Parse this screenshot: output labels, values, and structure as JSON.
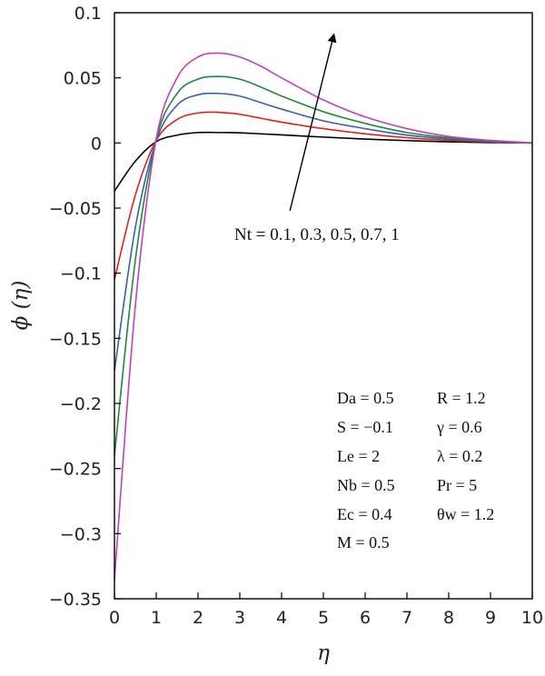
{
  "chart_data": {
    "type": "line",
    "title": "",
    "xlabel": "η",
    "ylabel": "ϕ (η)",
    "xlim": [
      0,
      10
    ],
    "ylim": [
      -0.35,
      0.1
    ],
    "x_ticks": [
      "0",
      "1",
      "2",
      "3",
      "4",
      "5",
      "6",
      "7",
      "8",
      "9",
      "10"
    ],
    "y_ticks": [
      "0.1",
      "0.05",
      "0",
      "−0.05",
      "−0.1",
      "−0.15",
      "−0.2",
      "−0.25",
      "−0.3",
      "−0.35"
    ],
    "grid": false,
    "series": [
      {
        "color": "#000000",
        "x": [
          0,
          0.5,
          1,
          1.5,
          2,
          2.5,
          3,
          3.5,
          4,
          5,
          6,
          7,
          8,
          9,
          10
        ],
        "y": [
          -0.037,
          -0.014,
          0.001,
          0.006,
          0.008,
          0.008,
          0.0078,
          0.007,
          0.0062,
          0.0045,
          0.003,
          0.0018,
          0.0009,
          0.0003,
          0
        ]
      },
      {
        "color": "#e2231a",
        "x": [
          0,
          0.5,
          1,
          1.5,
          2,
          2.5,
          3,
          3.5,
          4,
          5,
          6,
          7,
          8,
          9,
          10
        ],
        "y": [
          -0.105,
          -0.04,
          0.002,
          0.018,
          0.023,
          0.0235,
          0.022,
          0.019,
          0.016,
          0.011,
          0.007,
          0.004,
          0.002,
          0.0007,
          0
        ]
      },
      {
        "color": "#3a5fb0",
        "x": [
          0,
          0.5,
          1,
          1.5,
          2,
          2.5,
          3,
          3.5,
          4,
          5,
          6,
          7,
          8,
          9,
          10
        ],
        "y": [
          -0.175,
          -0.065,
          0.002,
          0.029,
          0.037,
          0.038,
          0.036,
          0.031,
          0.026,
          0.017,
          0.011,
          0.006,
          0.003,
          0.001,
          0
        ]
      },
      {
        "color": "#1e8a3a",
        "x": [
          0,
          0.5,
          1,
          1.5,
          2,
          2.5,
          3,
          3.5,
          4,
          5,
          6,
          7,
          8,
          9,
          10
        ],
        "y": [
          -0.24,
          -0.09,
          0.003,
          0.038,
          0.049,
          0.051,
          0.049,
          0.043,
          0.036,
          0.024,
          0.015,
          0.008,
          0.004,
          0.0015,
          0
        ]
      },
      {
        "color": "#c040c0",
        "x": [
          0,
          0.5,
          1,
          1.5,
          2,
          2.5,
          3,
          3.5,
          4,
          5,
          6,
          7,
          8,
          9,
          10
        ],
        "y": [
          -0.335,
          -0.125,
          0.003,
          0.05,
          0.066,
          0.069,
          0.066,
          0.059,
          0.05,
          0.033,
          0.02,
          0.011,
          0.005,
          0.002,
          0
        ]
      }
    ],
    "annotation": {
      "text": "Nt = 0.1, 0.3, 0.5, 0.7, 1",
      "arrow_from": [
        4.2,
        -0.052
      ],
      "arrow_to": [
        5.25,
        0.083
      ]
    },
    "parameters": {
      "left": [
        "Da = 0.5",
        "S = −0.1",
        "Le = 2",
        "Nb = 0.5",
        "Ec = 0.4",
        "M = 0.5"
      ],
      "right": [
        "R = 1.2",
        "γ = 0.6",
        "λ = 0.2",
        "Pr = 5",
        "θw = 1.2"
      ]
    }
  }
}
